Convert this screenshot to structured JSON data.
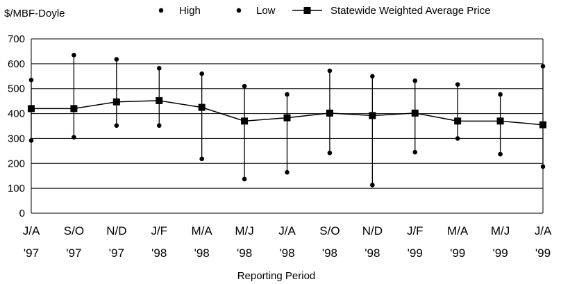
{
  "chart_data": {
    "type": "line",
    "title": "",
    "ylabel": "$/MBF-Doyle",
    "xlabel": "Reporting Period",
    "ylim": [
      0,
      700
    ],
    "yticks": [
      0,
      100,
      200,
      300,
      400,
      500,
      600,
      700
    ],
    "grid": true,
    "legend_position": "top",
    "categories": [
      [
        "J/A",
        "'97"
      ],
      [
        "S/O",
        "'97"
      ],
      [
        "N/D",
        "'97"
      ],
      [
        "J/F",
        "'98"
      ],
      [
        "M/A",
        "'98"
      ],
      [
        "M/J",
        "'98"
      ],
      [
        "J/A",
        "'98"
      ],
      [
        "S/O",
        "'98"
      ],
      [
        "N/D",
        "'98"
      ],
      [
        "J/F",
        "'99"
      ],
      [
        "M/A",
        "'99"
      ],
      [
        "M/J",
        "'99"
      ],
      [
        "J/A",
        "'99"
      ]
    ],
    "series": [
      {
        "name": "High",
        "marker": "dot",
        "values": [
          535,
          635,
          618,
          582,
          560,
          510,
          477,
          572,
          550,
          532,
          517,
          477,
          590
        ]
      },
      {
        "name": "Low",
        "marker": "dot",
        "values": [
          292,
          305,
          352,
          352,
          218,
          137,
          164,
          242,
          113,
          245,
          300,
          237,
          187
        ]
      },
      {
        "name": "Statewide Weighted Average Price",
        "marker": "square",
        "values": [
          420,
          420,
          447,
          452,
          425,
          370,
          383,
          402,
          392,
          402,
          370,
          370,
          355
        ]
      }
    ],
    "colors": {
      "line": "#000000",
      "grid": "#000000",
      "background": "#ffffff"
    }
  }
}
